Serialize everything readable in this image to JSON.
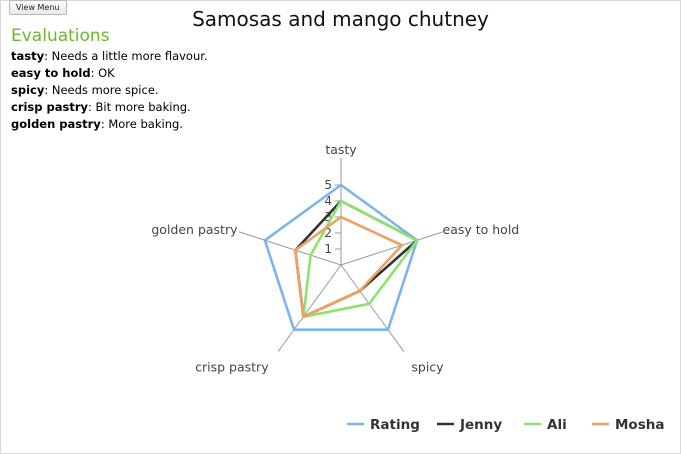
{
  "ui": {
    "view_menu_label": "View Menu"
  },
  "evaluations": {
    "heading": "Evaluations",
    "items": [
      {
        "criterion": "tasty",
        "comment": ": Needs a little more flavour."
      },
      {
        "criterion": "easy to hold",
        "comment": ": OK"
      },
      {
        "criterion": "spicy",
        "comment": ": Needs more spice."
      },
      {
        "criterion": "crisp pastry",
        "comment": ": Bit more baking."
      },
      {
        "criterion": "golden pastry",
        "comment": ": More baking."
      }
    ]
  },
  "chart_data": {
    "type": "radar",
    "title": "Samosas and mango chutney",
    "categories": [
      "tasty",
      "easy to hold",
      "spicy",
      "crisp pastry",
      "golden pastry"
    ],
    "ticks": [
      1,
      2,
      3,
      4,
      5
    ],
    "range": [
      0,
      5
    ],
    "legend_position": "bottom-right",
    "series": [
      {
        "name": "Rating",
        "color": "#7cb5ec",
        "values": [
          5,
          5,
          5,
          5,
          5
        ]
      },
      {
        "name": "Jenny",
        "color": "#333333",
        "values": [
          4,
          5,
          2,
          4,
          3
        ]
      },
      {
        "name": "Ali",
        "color": "#8ee36f",
        "values": [
          4,
          5,
          3,
          4,
          2
        ]
      },
      {
        "name": "Mosha",
        "color": "#f0a060",
        "values": [
          3,
          4,
          2,
          4,
          3
        ]
      }
    ]
  }
}
